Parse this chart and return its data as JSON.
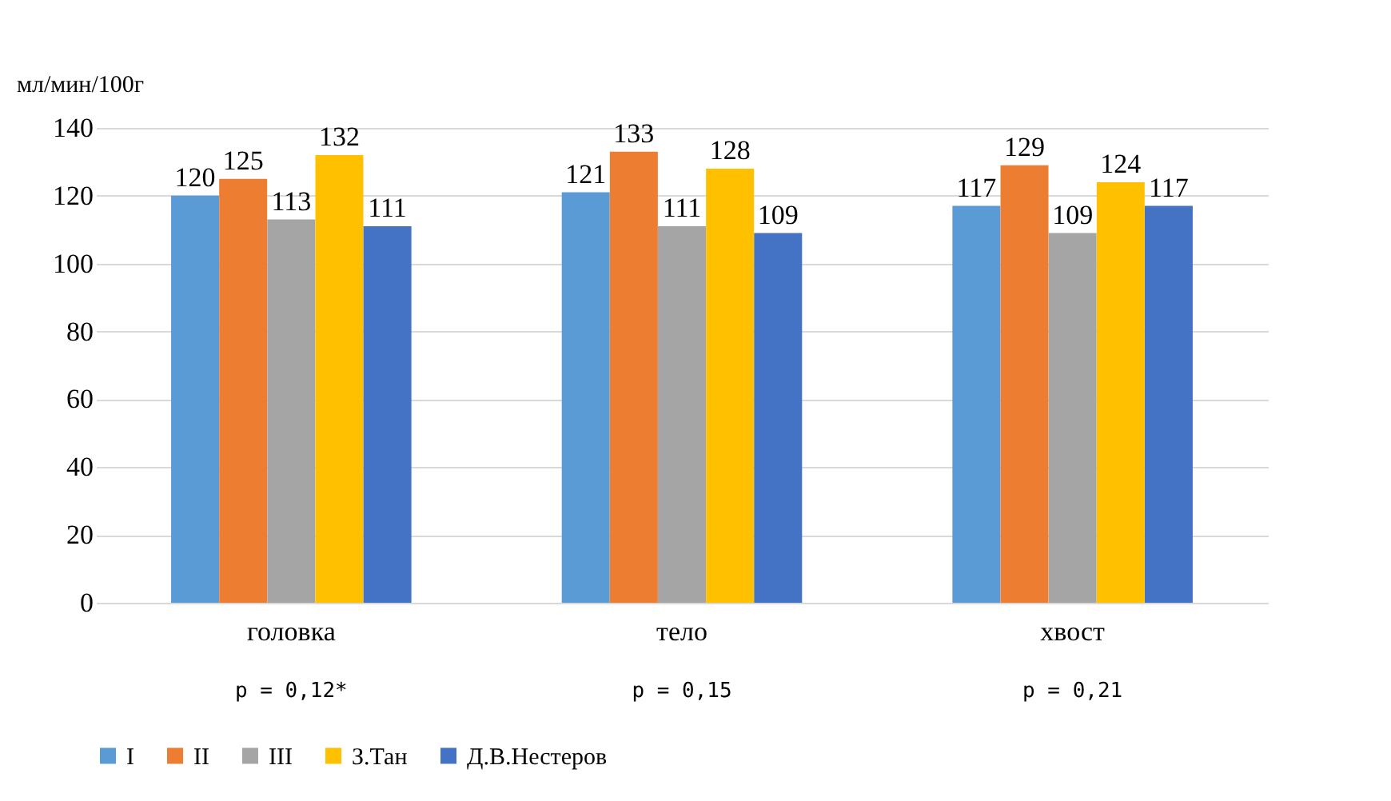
{
  "chart_data": {
    "type": "bar",
    "ylabel": "мл/мин/100г",
    "categories": [
      "головка",
      "тело",
      "хвост"
    ],
    "series": [
      {
        "name": "I",
        "color": "#5b9bd5",
        "values": [
          120,
          121,
          117
        ]
      },
      {
        "name": "II",
        "color": "#ed7d31",
        "values": [
          125,
          133,
          129
        ]
      },
      {
        "name": "III",
        "color": "#a5a5a5",
        "values": [
          113,
          111,
          109
        ]
      },
      {
        "name": "З.Тан",
        "color": "#ffc000",
        "values": [
          132,
          128,
          124
        ]
      },
      {
        "name": "Д.В.Нестеров",
        "color": "#4472c4",
        "values": [
          111,
          109,
          117
        ]
      }
    ],
    "ylim": [
      0,
      140
    ],
    "yticks": [
      0,
      20,
      40,
      60,
      80,
      100,
      120,
      140
    ],
    "grid": "y",
    "legend": "bottom",
    "data_labels": true,
    "annotations": [
      "p = 0,12*",
      "p = 0,15",
      "p = 0,21"
    ]
  }
}
